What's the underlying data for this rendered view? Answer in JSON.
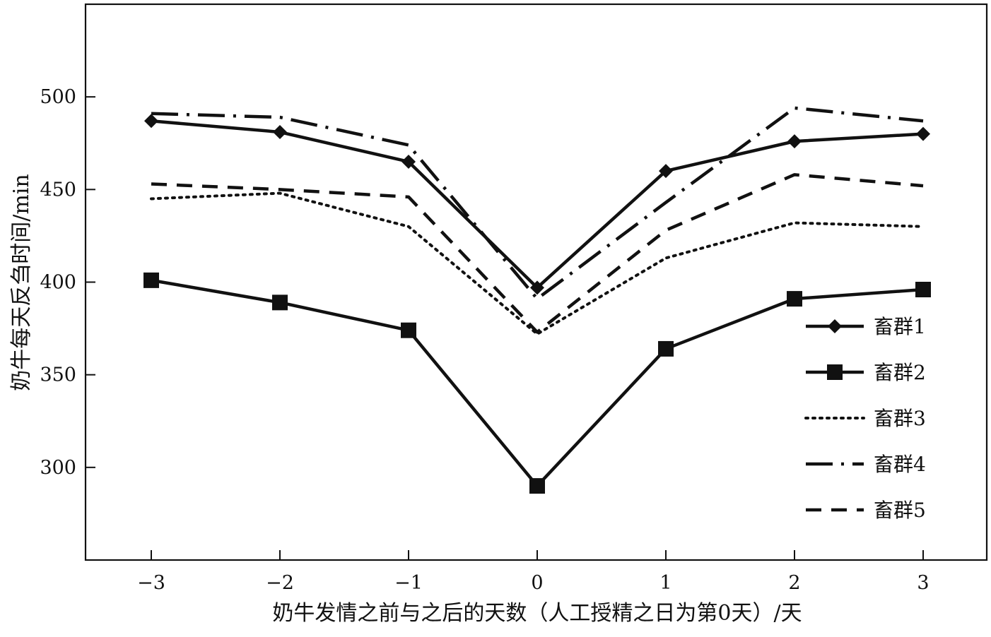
{
  "chart_data": {
    "type": "line",
    "title": "",
    "xlabel": "奶牛发情之前与之后的天数（人工授精之日为第0天）/天",
    "ylabel": "奶牛每天反刍时间/min",
    "x": [
      -3,
      -2,
      -1,
      0,
      1,
      2,
      3
    ],
    "x_tick_labels": [
      "−3",
      "−2",
      "−1",
      "0",
      "1",
      "2",
      "3"
    ],
    "xlim": [
      -3.5,
      3.5
    ],
    "ylim": [
      250,
      550
    ],
    "y_ticks": [
      300,
      350,
      400,
      450,
      500
    ],
    "grid": false,
    "legend_position": "right",
    "series": [
      {
        "name": "畜群1",
        "values": [
          487,
          481,
          465,
          397,
          460,
          476,
          480
        ],
        "style": "solid",
        "marker": "diamond",
        "color": "#111111"
      },
      {
        "name": "畜群2",
        "values": [
          401,
          389,
          374,
          290,
          364,
          391,
          396
        ],
        "style": "solid",
        "marker": "square",
        "color": "#111111"
      },
      {
        "name": "畜群3",
        "values": [
          445,
          448,
          430,
          372,
          413,
          432,
          430
        ],
        "style": "dotted",
        "marker": "none",
        "color": "#111111"
      },
      {
        "name": "畜群4",
        "values": [
          491,
          489,
          474,
          391,
          443,
          494,
          487
        ],
        "style": "dash-dot",
        "marker": "none",
        "color": "#111111"
      },
      {
        "name": "畜群5",
        "values": [
          453,
          450,
          446,
          373,
          428,
          458,
          452
        ],
        "style": "dashed",
        "marker": "none",
        "color": "#111111"
      }
    ]
  }
}
